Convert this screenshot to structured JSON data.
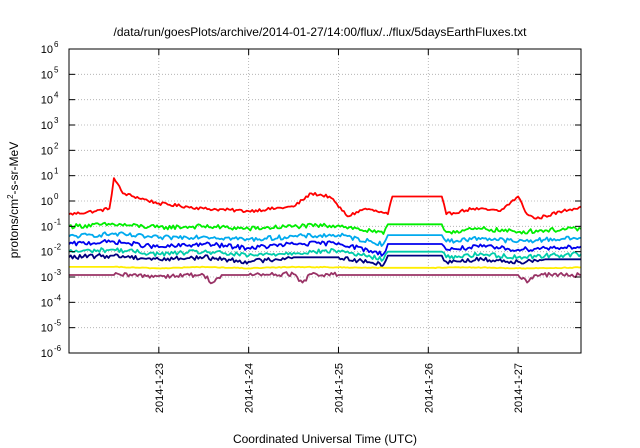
{
  "chart_data": {
    "type": "line",
    "title": "/data/run/goesPlots/archive/2014-01-27/14:00/flux/../flux/5daysEarthFluxes.txt",
    "xlabel": "Coordinated Universal Time (UTC)",
    "ylabel_parts": [
      "protons/cm",
      "2",
      "-s-sr-MeV"
    ],
    "yscale": "log",
    "ylim": [
      1e-06,
      1000000
    ],
    "xlim": [
      0,
      5.7
    ],
    "grid": true,
    "y_ticks": [
      {
        "value": 1e-06,
        "base": "10",
        "exp": "-6"
      },
      {
        "value": 1e-05,
        "base": "10",
        "exp": "-5"
      },
      {
        "value": 0.0001,
        "base": "10",
        "exp": "-4"
      },
      {
        "value": 0.001,
        "base": "10",
        "exp": "-3"
      },
      {
        "value": 0.01,
        "base": "10",
        "exp": "-2"
      },
      {
        "value": 0.1,
        "base": "10",
        "exp": "-1"
      },
      {
        "value": 1,
        "base": "10",
        "exp": "0"
      },
      {
        "value": 10,
        "base": "10",
        "exp": "1"
      },
      {
        "value": 100,
        "base": "10",
        "exp": "2"
      },
      {
        "value": 1000,
        "base": "10",
        "exp": "3"
      },
      {
        "value": 10000,
        "base": "10",
        "exp": "4"
      },
      {
        "value": 100000,
        "base": "10",
        "exp": "5"
      },
      {
        "value": 1000000,
        "base": "10",
        "exp": "6"
      }
    ],
    "x_ticks": [
      {
        "value": 1,
        "label": "2014-1-23"
      },
      {
        "value": 2,
        "label": "2014-1-24"
      },
      {
        "value": 3,
        "label": "2014-1-25"
      },
      {
        "value": 4,
        "label": "2014-1-26"
      },
      {
        "value": 5,
        "label": "2014-1-27"
      }
    ],
    "series": [
      {
        "color": "#ff0000",
        "x": [
          0,
          0.3,
          0.45,
          0.5,
          0.6,
          1.0,
          1.5,
          2.0,
          2.5,
          2.7,
          2.9,
          3.1,
          3.3,
          3.55,
          3.6,
          4.15,
          4.2,
          4.5,
          4.8,
          5.0,
          5.1,
          5.2,
          5.5,
          5.7
        ],
        "y": [
          0.3,
          0.4,
          0.5,
          8,
          2,
          0.8,
          0.5,
          0.4,
          0.6,
          2,
          1.5,
          0.25,
          0.5,
          0.3,
          1.5,
          1.5,
          0.3,
          0.5,
          0.4,
          1.5,
          0.3,
          0.2,
          0.4,
          0.6
        ]
      },
      {
        "color": "#00ee00",
        "x": [
          0,
          0.5,
          1.0,
          1.5,
          2.0,
          2.5,
          3.0,
          3.5,
          3.55,
          4.15,
          4.2,
          4.6,
          5.0,
          5.3,
          5.7
        ],
        "y": [
          0.1,
          0.12,
          0.09,
          0.1,
          0.08,
          0.1,
          0.11,
          0.05,
          0.12,
          0.12,
          0.06,
          0.08,
          0.06,
          0.07,
          0.08
        ]
      },
      {
        "color": "#00aaee",
        "x": [
          0,
          0.5,
          1.0,
          1.5,
          2.0,
          2.5,
          3.0,
          3.5,
          3.55,
          4.15,
          4.2,
          4.6,
          5.0,
          5.3,
          5.7
        ],
        "y": [
          0.04,
          0.05,
          0.035,
          0.04,
          0.03,
          0.04,
          0.045,
          0.02,
          0.045,
          0.045,
          0.025,
          0.035,
          0.025,
          0.03,
          0.035
        ]
      },
      {
        "color": "#0000ee",
        "x": [
          0,
          0.5,
          1.0,
          1.5,
          2.0,
          2.5,
          3.0,
          3.5,
          3.55,
          4.15,
          4.2,
          4.6,
          5.0,
          5.3,
          5.7
        ],
        "y": [
          0.02,
          0.025,
          0.015,
          0.02,
          0.014,
          0.02,
          0.022,
          0.008,
          0.02,
          0.02,
          0.012,
          0.016,
          0.012,
          0.014,
          0.016
        ]
      },
      {
        "color": "#00ccaa",
        "x": [
          0,
          0.5,
          1.0,
          1.5,
          2.0,
          2.5,
          3.0,
          3.5,
          3.55,
          4.15,
          4.2,
          4.6,
          5.0,
          5.3,
          5.7
        ],
        "y": [
          0.01,
          0.012,
          0.008,
          0.01,
          0.007,
          0.009,
          0.011,
          0.005,
          0.01,
          0.01,
          0.006,
          0.008,
          0.006,
          0.007,
          0.008
        ]
      },
      {
        "color": "#000080",
        "x": [
          0,
          0.5,
          1.0,
          1.5,
          2.0,
          2.5,
          3.0,
          3.5,
          3.55,
          4.15,
          4.2,
          4.6,
          5.0,
          5.3,
          5.7
        ],
        "y": [
          0.006,
          0.007,
          0.005,
          0.006,
          0.004,
          0.006,
          0.006,
          0.003,
          0.007,
          0.007,
          0.004,
          0.005,
          0.004,
          0.005,
          0.005
        ]
      },
      {
        "color": "#ffee00",
        "x": [
          0,
          0.5,
          1.0,
          1.5,
          2.0,
          2.5,
          3.0,
          3.5,
          4.0,
          4.5,
          5.0,
          5.5,
          5.7
        ],
        "y": [
          0.0025,
          0.0025,
          0.0022,
          0.0025,
          0.0022,
          0.0025,
          0.0024,
          0.0023,
          0.0023,
          0.0024,
          0.0022,
          0.0023,
          0.0024
        ]
      },
      {
        "color": "#993366",
        "x": [
          0,
          0.5,
          1.0,
          1.5,
          1.6,
          1.7,
          2.0,
          2.5,
          2.6,
          2.7,
          3.0,
          3.5,
          4.0,
          4.5,
          5.0,
          5.1,
          5.2,
          5.5,
          5.7
        ],
        "y": [
          0.0012,
          0.0012,
          0.0011,
          0.0012,
          0.0006,
          0.0012,
          0.0012,
          0.0013,
          0.0006,
          0.0013,
          0.0012,
          0.0012,
          0.0012,
          0.0012,
          0.0012,
          0.0006,
          0.0012,
          0.0012,
          0.0012
        ]
      }
    ]
  }
}
